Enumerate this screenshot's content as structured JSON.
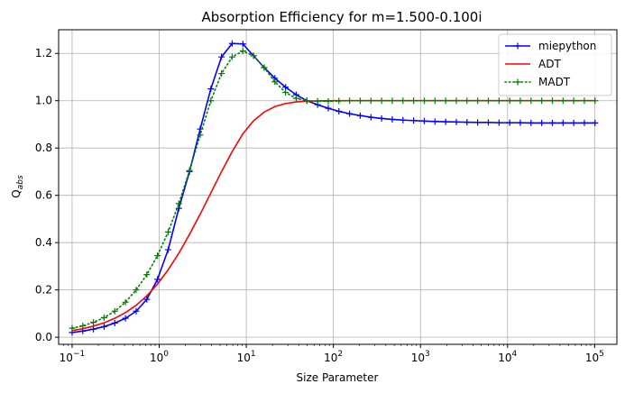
{
  "chart_data": {
    "type": "line",
    "title": "Absorption Efficiency for m=1.500-0.100i",
    "xlabel": "Size Parameter",
    "ylabel": "Q",
    "ylabel_sub": "abs",
    "xscale": "log",
    "xlim": [
      0.07,
      180000
    ],
    "ylim": [
      -0.03,
      1.3
    ],
    "grid": true,
    "legend_position": "top-right",
    "xticks": [
      {
        "value": 0.1,
        "base": "10",
        "exp": "−1"
      },
      {
        "value": 1,
        "base": "10",
        "exp": "0"
      },
      {
        "value": 10,
        "base": "10",
        "exp": "1"
      },
      {
        "value": 100,
        "base": "10",
        "exp": "2"
      },
      {
        "value": 1000,
        "base": "10",
        "exp": "3"
      },
      {
        "value": 10000,
        "base": "10",
        "exp": "4"
      },
      {
        "value": 100000,
        "base": "10",
        "exp": "5"
      }
    ],
    "yticks": [
      {
        "value": 0.0,
        "label": "0.0"
      },
      {
        "value": 0.2,
        "label": "0.2"
      },
      {
        "value": 0.4,
        "label": "0.4"
      },
      {
        "value": 0.6,
        "label": "0.6"
      },
      {
        "value": 0.8,
        "label": "0.8"
      },
      {
        "value": 1.0,
        "label": "1.0"
      },
      {
        "value": 1.2,
        "label": "1.2"
      }
    ],
    "x": [
      0.1,
      0.1326,
      0.1758,
      0.2331,
      0.3091,
      0.4099,
      0.5435,
      0.7207,
      0.9556,
      1.267,
      1.68,
      2.228,
      2.954,
      3.917,
      5.194,
      6.887,
      9.133,
      12.11,
      16.06,
      21.29,
      28.23,
      37.44,
      49.64,
      65.83,
      87.29,
      115.7,
      153.5,
      203.5,
      269.9,
      357.9,
      474.5,
      629.2,
      834.4,
      1106,
      1467,
      1946,
      2580,
      3421,
      4536,
      6015,
      7977,
      10580,
      14020,
      18600,
      24660,
      32700,
      43360,
      57500,
      76250,
      101100
    ],
    "series": [
      {
        "name": "miepython",
        "color": "#0000ff",
        "line_style": "solid",
        "marker": "+",
        "values": [
          0.02,
          0.026,
          0.034,
          0.045,
          0.06,
          0.08,
          0.11,
          0.16,
          0.245,
          0.37,
          0.545,
          0.7,
          0.88,
          1.05,
          1.185,
          1.242,
          1.24,
          1.19,
          1.14,
          1.095,
          1.057,
          1.025,
          1.0,
          0.983,
          0.968,
          0.955,
          0.945,
          0.937,
          0.93,
          0.925,
          0.921,
          0.918,
          0.916,
          0.914,
          0.912,
          0.911,
          0.91,
          0.909,
          0.908,
          0.908,
          0.907,
          0.907,
          0.907,
          0.906,
          0.906,
          0.906,
          0.906,
          0.906,
          0.906,
          0.906
        ]
      },
      {
        "name": "ADT",
        "color": "#ff0000",
        "line_style": "solid",
        "marker": "none",
        "values": [
          0.028,
          0.036,
          0.047,
          0.061,
          0.08,
          0.104,
          0.135,
          0.175,
          0.225,
          0.285,
          0.355,
          0.435,
          0.52,
          0.61,
          0.7,
          0.785,
          0.86,
          0.915,
          0.952,
          0.975,
          0.988,
          0.995,
          0.998,
          0.999,
          1.0,
          1.0,
          1.0,
          1.0,
          1.0,
          1.0,
          1.0,
          1.0,
          1.0,
          1.0,
          1.0,
          1.0,
          1.0,
          1.0,
          1.0,
          1.0,
          1.0,
          1.0,
          1.0,
          1.0,
          1.0,
          1.0,
          1.0,
          1.0,
          1.0,
          1.0
        ]
      },
      {
        "name": "MADT",
        "color": "#008000",
        "line_style": "dotted",
        "marker": "+",
        "values": [
          0.038,
          0.048,
          0.063,
          0.083,
          0.11,
          0.148,
          0.2,
          0.265,
          0.345,
          0.445,
          0.565,
          0.705,
          0.855,
          1.0,
          1.115,
          1.185,
          1.21,
          1.19,
          1.14,
          1.08,
          1.035,
          1.01,
          1.0,
          0.998,
          0.998,
          0.999,
          1.0,
          1.0,
          1.0,
          1.0,
          1.0,
          1.0,
          1.0,
          1.0,
          1.0,
          1.0,
          1.0,
          1.0,
          1.0,
          1.0,
          1.0,
          1.0,
          1.0,
          1.0,
          1.0,
          1.0,
          1.0,
          1.0,
          1.0,
          1.0
        ]
      }
    ]
  }
}
